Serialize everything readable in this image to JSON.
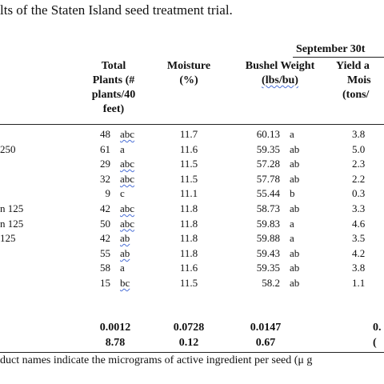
{
  "caption": "lts of the Staten Island seed treatment trial.",
  "section_header": "September 30t",
  "headers": {
    "total_plants": [
      "Total",
      "Plants (#",
      "plants/40",
      "feet)"
    ],
    "moisture": [
      "Moisture",
      "(%)"
    ],
    "bushel_weight": [
      "Bushel Weight",
      "(lbs/bu)"
    ],
    "yield": [
      "Yield a",
      "Mois",
      "(tons/"
    ]
  },
  "rows": [
    {
      "label": "",
      "plants": "48",
      "plants_letter": "abc",
      "moisture": "11.7",
      "bushel": "60.13",
      "bushel_letter": "a",
      "yield": "3.8"
    },
    {
      "label": "250",
      "plants": "61",
      "plants_letter": "a",
      "moisture": "11.6",
      "bushel": "59.35",
      "bushel_letter": "ab",
      "yield": "5.0"
    },
    {
      "label": "",
      "plants": "29",
      "plants_letter": "abc",
      "moisture": "11.5",
      "bushel": "57.28",
      "bushel_letter": "ab",
      "yield": "2.3"
    },
    {
      "label": "",
      "plants": "32",
      "plants_letter": "abc",
      "moisture": "11.5",
      "bushel": "57.78",
      "bushel_letter": "ab",
      "yield": "2.2"
    },
    {
      "label": "",
      "plants": "9",
      "plants_letter": "c",
      "moisture": "11.1",
      "bushel": "55.44",
      "bushel_letter": "b",
      "yield": "0.3"
    },
    {
      "label": "n 125",
      "plants": "42",
      "plants_letter": "abc",
      "moisture": "11.8",
      "bushel": "58.73",
      "bushel_letter": "ab",
      "yield": "3.3"
    },
    {
      "label": "n 125",
      "plants": "50",
      "plants_letter": "abc",
      "moisture": "11.8",
      "bushel": "59.83",
      "bushel_letter": "a",
      "yield": "4.6"
    },
    {
      "label": "125",
      "plants": "42",
      "plants_letter": "ab",
      "moisture": "11.8",
      "bushel": "59.88",
      "bushel_letter": "a",
      "yield": "3.5"
    },
    {
      "label": "",
      "plants": "55",
      "plants_letter": "ab",
      "moisture": "11.8",
      "bushel": "59.43",
      "bushel_letter": "ab",
      "yield": "4.2"
    },
    {
      "label": "",
      "plants": "58",
      "plants_letter": "a",
      "moisture": "11.6",
      "bushel": "59.35",
      "bushel_letter": "ab",
      "yield": "3.8"
    },
    {
      "label": "",
      "plants": "15",
      "plants_letter": "bc",
      "moisture": "11.5",
      "bushel": "58.2",
      "bushel_letter": "ab",
      "yield": "1.1"
    }
  ],
  "summary": [
    {
      "plants": "0.0012",
      "moisture": "0.0728",
      "bushel": "0.0147",
      "yield": "0."
    },
    {
      "plants": "8.78",
      "moisture": "0.12",
      "bushel": "0.67",
      "yield": "("
    }
  ],
  "footnote": "duct names indicate the micrograms of active ingredient per seed (μ g"
}
